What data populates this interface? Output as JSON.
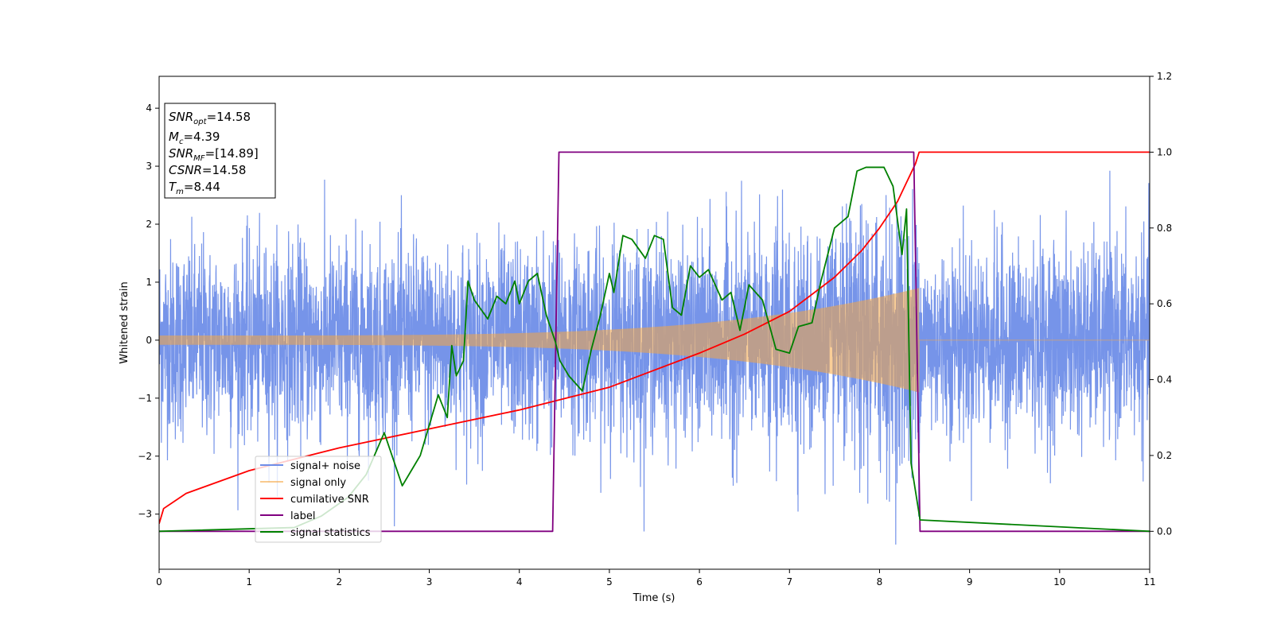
{
  "chart_data": {
    "type": "line",
    "xlabel": "Time (s)",
    "ylabel": "Whitened strain",
    "xlim": [
      0,
      11
    ],
    "ylim_left": [
      -3.95,
      4.55
    ],
    "ylim_right": [
      -0.1,
      1.2
    ],
    "x_ticks": [
      "0",
      "1",
      "2",
      "3",
      "4",
      "5",
      "6",
      "7",
      "8",
      "9",
      "10",
      "11"
    ],
    "y_ticks_left": [
      "4",
      "3",
      "2",
      "1",
      "0",
      "−1",
      "−2",
      "−3"
    ],
    "y_ticks_right": [
      "1.2",
      "1.0",
      "0.8",
      "0.6",
      "0.4",
      "0.2",
      "0.0"
    ],
    "grid": false,
    "legend_position": "lower-left",
    "info_box": {
      "snr_opt": {
        "base": "SNR",
        "sub": "opt",
        "value": "=14.58"
      },
      "mc": {
        "base": "M",
        "sub": "c",
        "value": "=4.39"
      },
      "snr_mf": {
        "base": "SNR",
        "sub": "MF",
        "value": "=[14.89]"
      },
      "csnr": {
        "base": "CSNR",
        "sub": "",
        "value": "=14.58"
      },
      "tm": {
        "base": "T",
        "sub": "m",
        "value": "=8.44"
      }
    },
    "signal_end": 8.44,
    "series": [
      {
        "name": "signal+ noise",
        "color": "#6f8ee8",
        "axis": "left",
        "noise_sd": 0.82
      },
      {
        "name": "signal only",
        "color": "#f5a642",
        "axis": "left",
        "amp_start": 0.08,
        "amp_end": 0.9
      },
      {
        "name": "cumilative SNR",
        "color": "#ff0000",
        "axis": "right",
        "x": [
          0,
          0.05,
          0.3,
          1,
          2,
          3,
          4,
          5,
          6,
          6.5,
          7,
          7.5,
          7.8,
          8.0,
          8.2,
          8.3,
          8.4,
          8.44,
          11
        ],
        "y": [
          0.02,
          0.06,
          0.1,
          0.16,
          0.22,
          0.27,
          0.32,
          0.38,
          0.47,
          0.52,
          0.58,
          0.67,
          0.74,
          0.8,
          0.87,
          0.92,
          0.97,
          1.0,
          1.0
        ]
      },
      {
        "name": "label",
        "color": "#800080",
        "axis": "right",
        "x": [
          0,
          4.37,
          4.44,
          8.38,
          8.45,
          11
        ],
        "y": [
          0,
          0,
          1,
          1,
          0,
          0
        ]
      },
      {
        "name": "signal statistics",
        "color": "#008000",
        "axis": "right",
        "x": [
          0,
          1.5,
          1.8,
          2.1,
          2.3,
          2.5,
          2.7,
          2.8,
          2.9,
          3.0,
          3.1,
          3.2,
          3.25,
          3.3,
          3.38,
          3.43,
          3.5,
          3.65,
          3.75,
          3.85,
          3.95,
          4.0,
          4.1,
          4.2,
          4.3,
          4.4,
          4.45,
          4.55,
          4.7,
          4.8,
          4.9,
          5.0,
          5.05,
          5.15,
          5.25,
          5.4,
          5.5,
          5.6,
          5.7,
          5.8,
          5.9,
          6.0,
          6.1,
          6.25,
          6.35,
          6.45,
          6.55,
          6.7,
          6.85,
          7.0,
          7.1,
          7.25,
          7.35,
          7.5,
          7.65,
          7.75,
          7.85,
          7.95,
          8.05,
          8.15,
          8.25,
          8.3,
          8.35,
          8.45,
          11
        ],
        "y": [
          0,
          0.01,
          0.04,
          0.09,
          0.15,
          0.26,
          0.12,
          0.16,
          0.2,
          0.28,
          0.36,
          0.3,
          0.49,
          0.41,
          0.45,
          0.66,
          0.61,
          0.56,
          0.62,
          0.6,
          0.66,
          0.6,
          0.66,
          0.68,
          0.57,
          0.5,
          0.45,
          0.41,
          0.37,
          0.48,
          0.57,
          0.68,
          0.63,
          0.78,
          0.77,
          0.72,
          0.78,
          0.77,
          0.59,
          0.57,
          0.7,
          0.67,
          0.69,
          0.61,
          0.63,
          0.53,
          0.65,
          0.61,
          0.48,
          0.47,
          0.54,
          0.55,
          0.66,
          0.8,
          0.83,
          0.95,
          0.96,
          0.96,
          0.96,
          0.91,
          0.73,
          0.85,
          0.18,
          0.03,
          0.0
        ]
      }
    ]
  }
}
